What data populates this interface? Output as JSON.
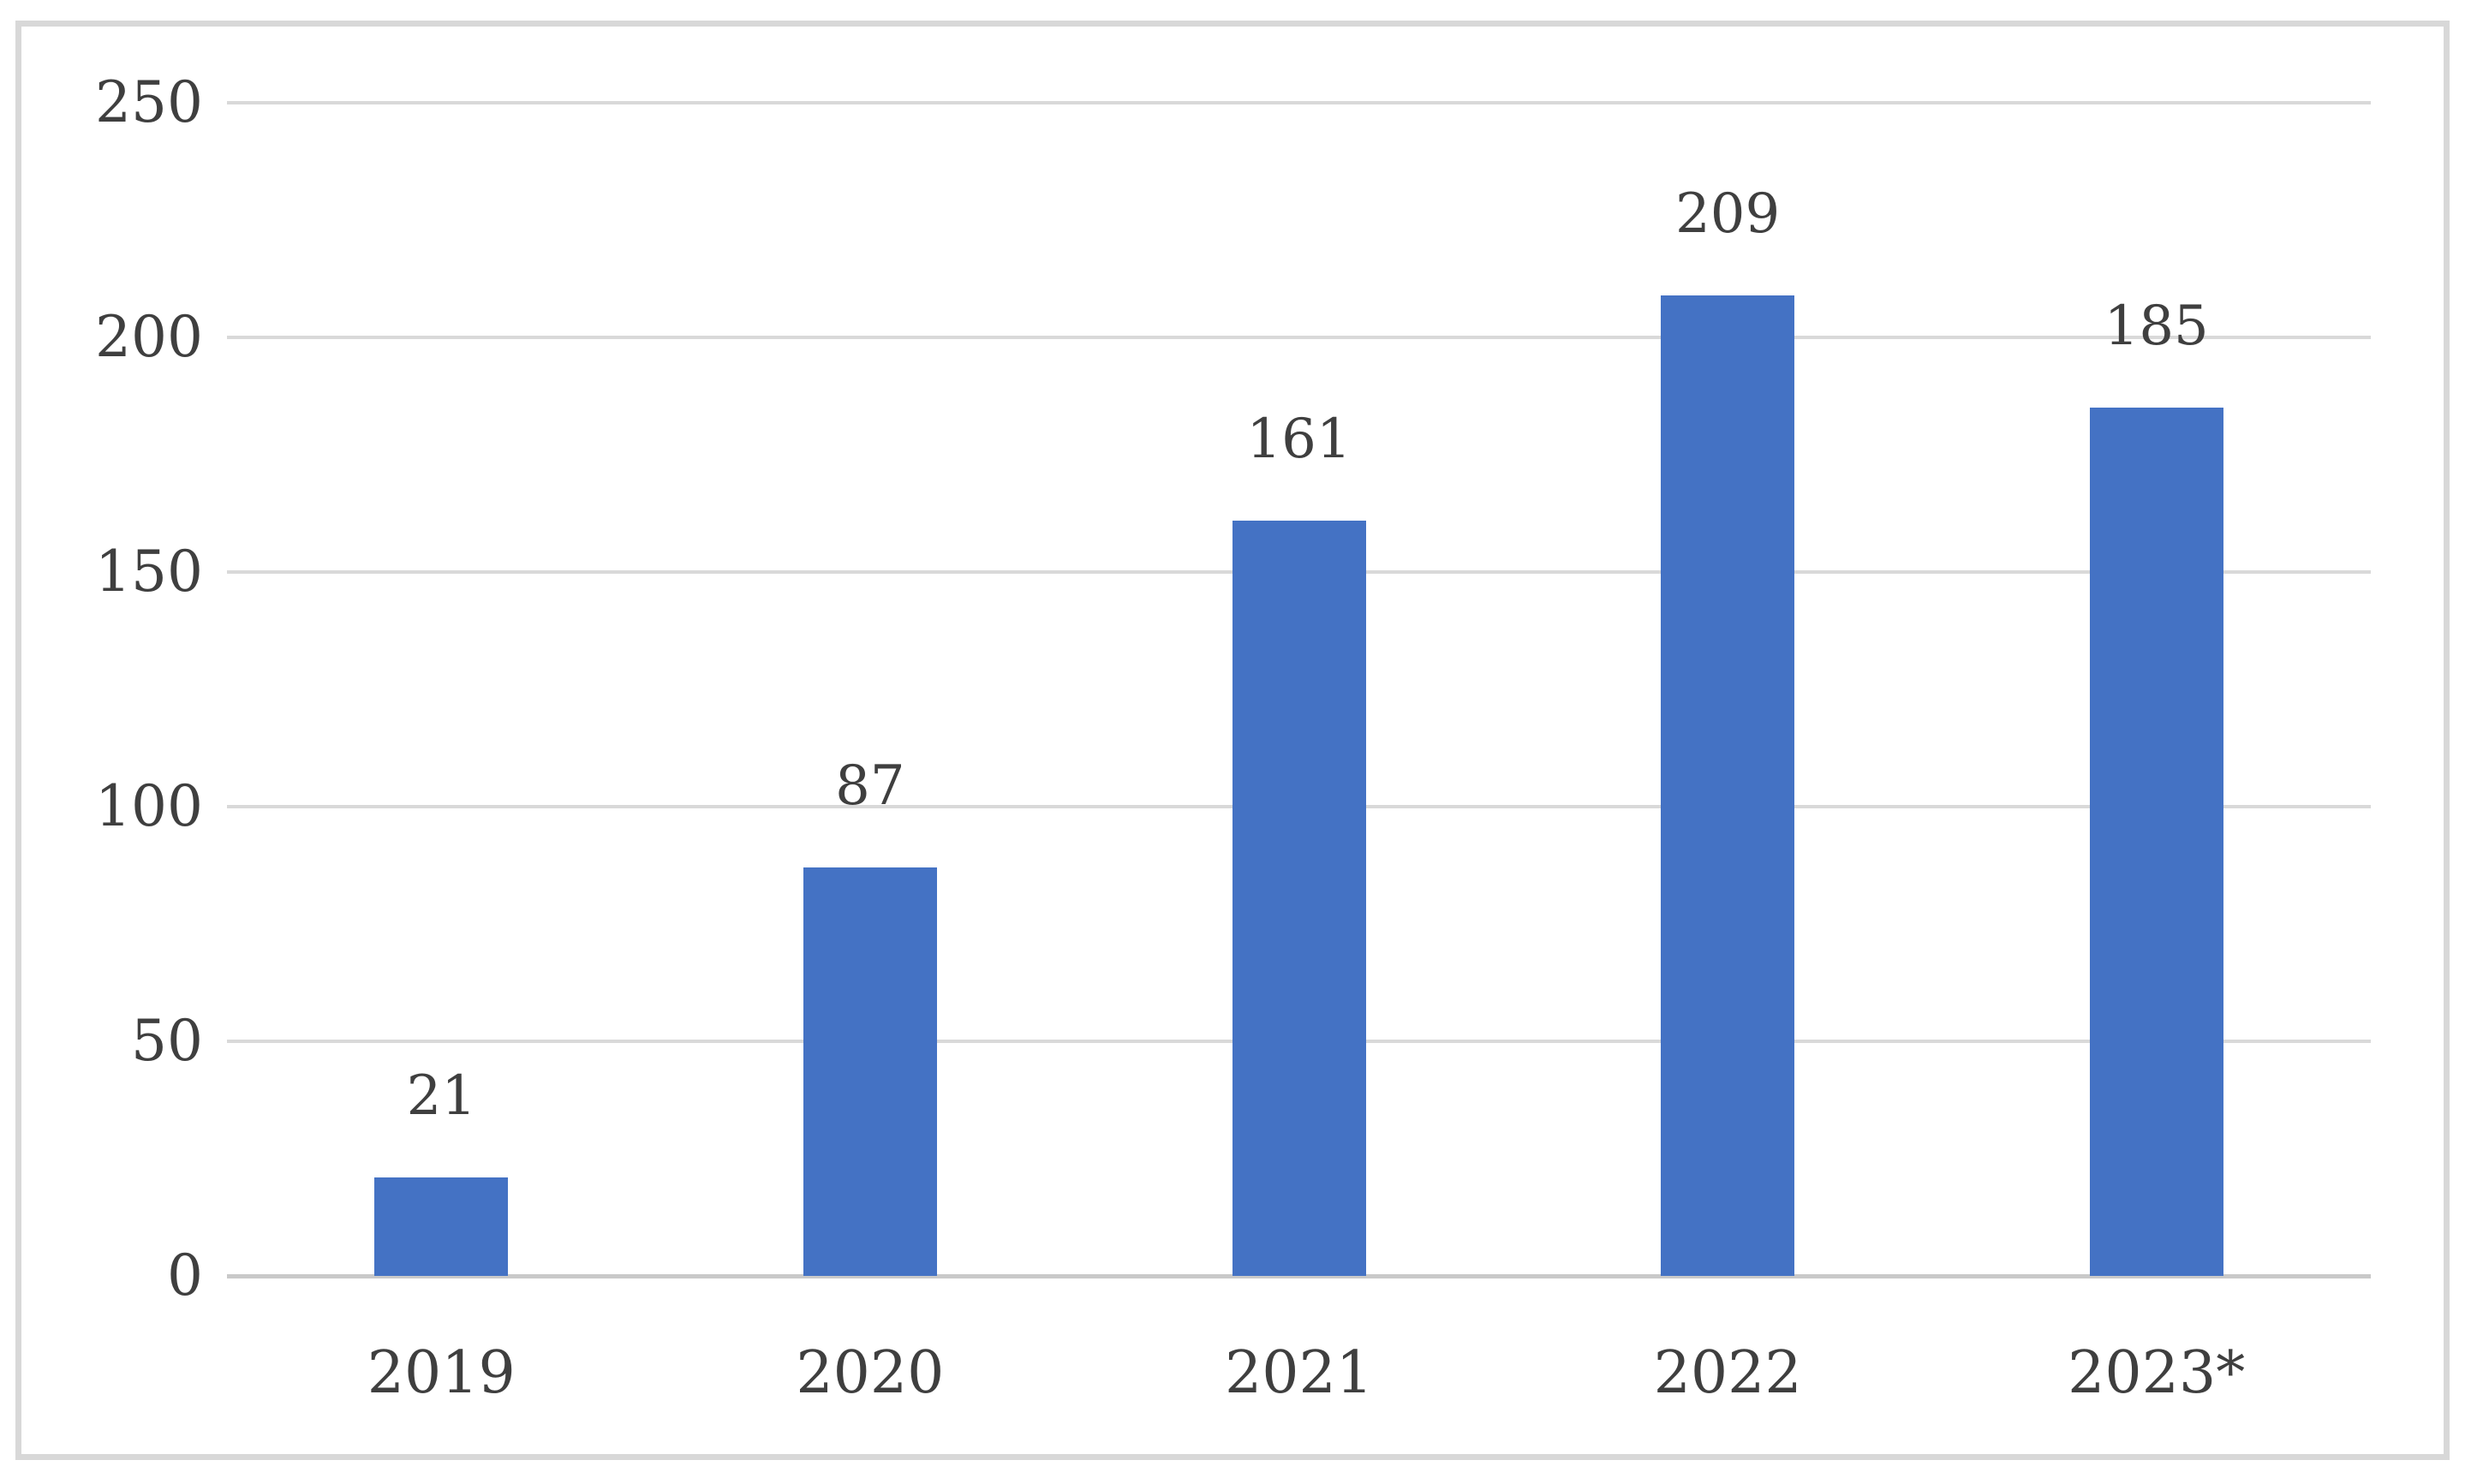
{
  "chart_data": {
    "type": "bar",
    "categories": [
      "2019",
      "2020",
      "2021",
      "2022",
      "2023*"
    ],
    "values": [
      21,
      87,
      161,
      209,
      185
    ],
    "data_labels": [
      "21",
      "87",
      "161",
      "209",
      "185"
    ],
    "yticks": [
      "0",
      "50",
      "100",
      "150",
      "200",
      "250"
    ],
    "ytick_values": [
      0,
      50,
      100,
      150,
      200,
      250
    ],
    "ylim": [
      0,
      250
    ],
    "title": "",
    "xlabel": "",
    "ylabel": "",
    "grid": true,
    "legend_position": "none",
    "colors": {
      "bar": "#4472c4",
      "gridline": "#d9d9d9",
      "axis_line": "#c9c9c9",
      "label_text": "#3f3f3f",
      "frame_border": "#d8d8d8",
      "background": "#ffffff"
    }
  }
}
